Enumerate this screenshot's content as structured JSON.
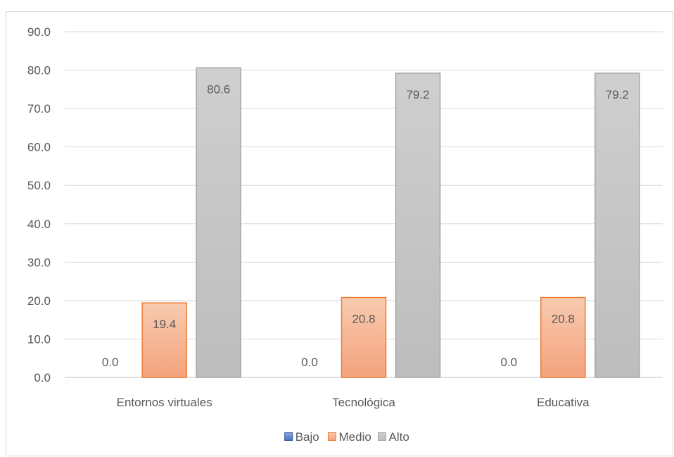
{
  "chart_data": {
    "type": "bar",
    "categories": [
      "Entornos virtuales",
      "Tecnológica",
      "Educativa"
    ],
    "series": [
      {
        "name": "Bajo",
        "values": [
          0.0,
          0.0,
          0.0
        ],
        "color": "#4472c4"
      },
      {
        "name": "Medio",
        "values": [
          19.4,
          20.8,
          20.8
        ],
        "color": "#f4a27c"
      },
      {
        "name": "Alto",
        "values": [
          80.6,
          79.2,
          79.2
        ],
        "color": "#bfbfbf"
      }
    ],
    "title": "",
    "xlabel": "",
    "ylabel": "",
    "ylim": [
      0,
      90
    ],
    "yticks": [
      "0.0",
      "10.0",
      "20.0",
      "30.0",
      "40.0",
      "50.0",
      "60.0",
      "70.0",
      "80.0",
      "90.0"
    ],
    "grid": true,
    "legend_position": "bottom",
    "data_labels": true
  }
}
